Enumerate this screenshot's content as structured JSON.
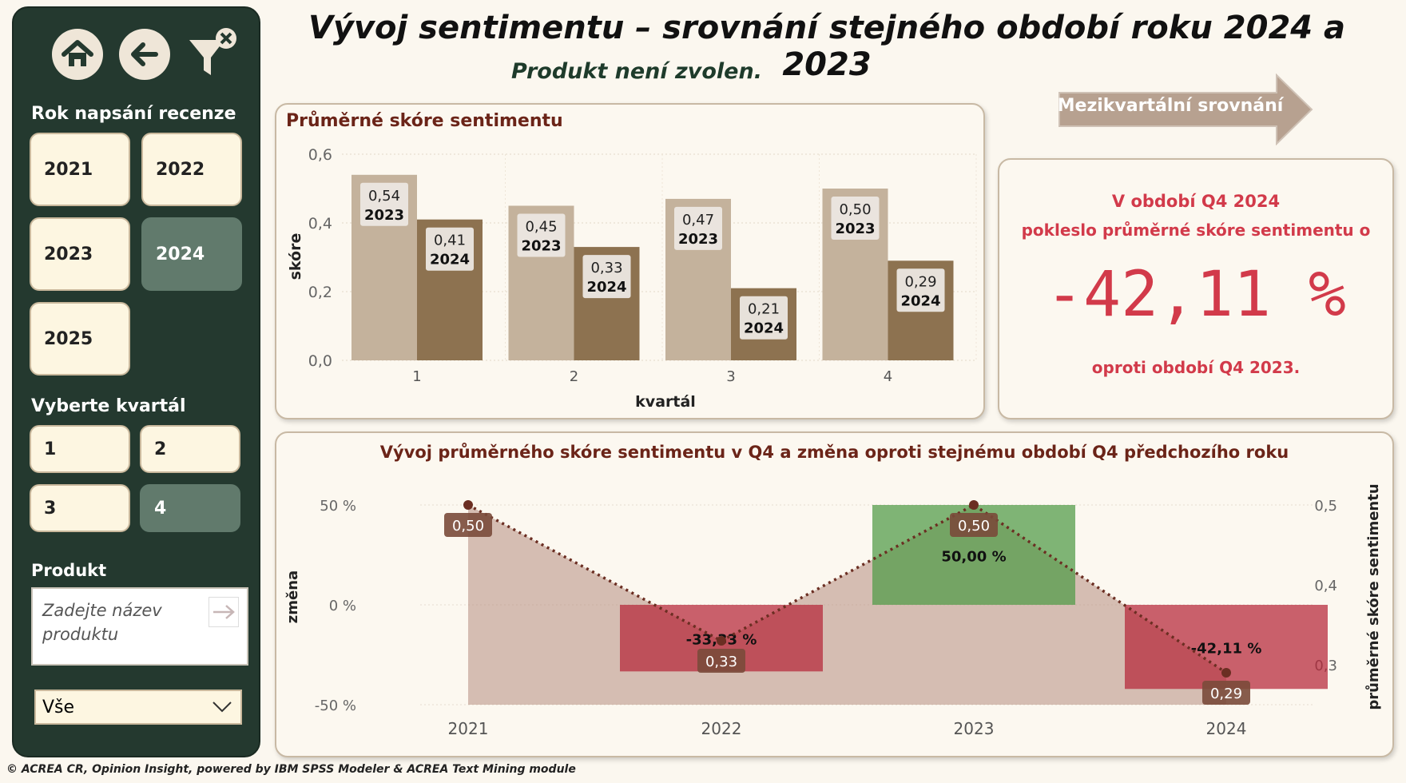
{
  "title": "Vývoj sentimentu – srovnání stejného období roku 2024 a 2023",
  "subtitle": "Produkt není zvolen.",
  "sidebar": {
    "year_label": "Rok napsání recenze",
    "years": [
      {
        "label": "2021",
        "selected": false
      },
      {
        "label": "2022",
        "selected": false
      },
      {
        "label": "2023",
        "selected": false
      },
      {
        "label": "2024",
        "selected": true
      },
      {
        "label": "2025",
        "selected": false
      }
    ],
    "quarter_label": "Vyberte kvartál",
    "quarters": [
      {
        "label": "1",
        "selected": false
      },
      {
        "label": "2",
        "selected": false
      },
      {
        "label": "3",
        "selected": false
      },
      {
        "label": "4",
        "selected": true
      }
    ],
    "product_label": "Produkt",
    "product_placeholder": "Zadejte název produktu",
    "dropdown_value": "Vše"
  },
  "nav_button": "Mezikvartální srovnání",
  "kpi": {
    "line1": "V období Q4 2024",
    "line2": "pokleslo průměrné skóre sentimentu o",
    "value": "-42,11 %",
    "line3": "oproti období Q4 2023."
  },
  "footer": "© ACREA CR, Opinion Insight, powered by IBM SPSS Modeler & ACREA Text Mining module",
  "colors": {
    "sidebar_bg": "#24392f",
    "bar_2023": "#c4b29c",
    "bar_2024": "#8d7250",
    "positive": "#4f9a45",
    "negative": "#b52638",
    "accent_red": "#d23a4a"
  },
  "chart_data": [
    {
      "type": "bar",
      "title": "Průměrné skóre sentimentu",
      "xlabel": "kvartál",
      "ylabel": "skóre",
      "categories": [
        "1",
        "2",
        "3",
        "4"
      ],
      "ylim": [
        0,
        0.6
      ],
      "yticks": [
        "0,0",
        "0,2",
        "0,4",
        "0,6"
      ],
      "series": [
        {
          "name": "2023",
          "values": [
            0.54,
            0.45,
            0.47,
            0.5
          ],
          "labels": [
            "0,54",
            "0,45",
            "0,47",
            "0,50"
          ]
        },
        {
          "name": "2024",
          "values": [
            0.41,
            0.33,
            0.21,
            0.29
          ],
          "labels": [
            "0,41",
            "0,33",
            "0,21",
            "0,29"
          ]
        }
      ]
    },
    {
      "type": "bar",
      "title": "Vývoj průměrného skóre sentimentu v Q4 a změna oproti stejnému období Q4 předchozího roku",
      "xlabel": "",
      "ylabel": "změna",
      "y2label": "průměrné skóre sentimentu",
      "categories": [
        "2021",
        "2022",
        "2023",
        "2024"
      ],
      "ylim": [
        -50,
        50
      ],
      "y2lim": [
        0.25,
        0.5
      ],
      "yticks": [
        "50 %",
        "0 %",
        "-50 %"
      ],
      "y2ticks": [
        "0,5",
        "0,4",
        "0,3"
      ],
      "change": {
        "values": [
          null,
          -33.33,
          50.0,
          -42.11
        ],
        "labels": [
          "",
          "-33,33 %",
          "50,00 %",
          "-42,11 %"
        ]
      },
      "score": {
        "values": [
          0.5,
          0.33,
          0.5,
          0.29
        ],
        "labels": [
          "0,50",
          "0,33",
          "0,50",
          "0,29"
        ]
      }
    }
  ]
}
